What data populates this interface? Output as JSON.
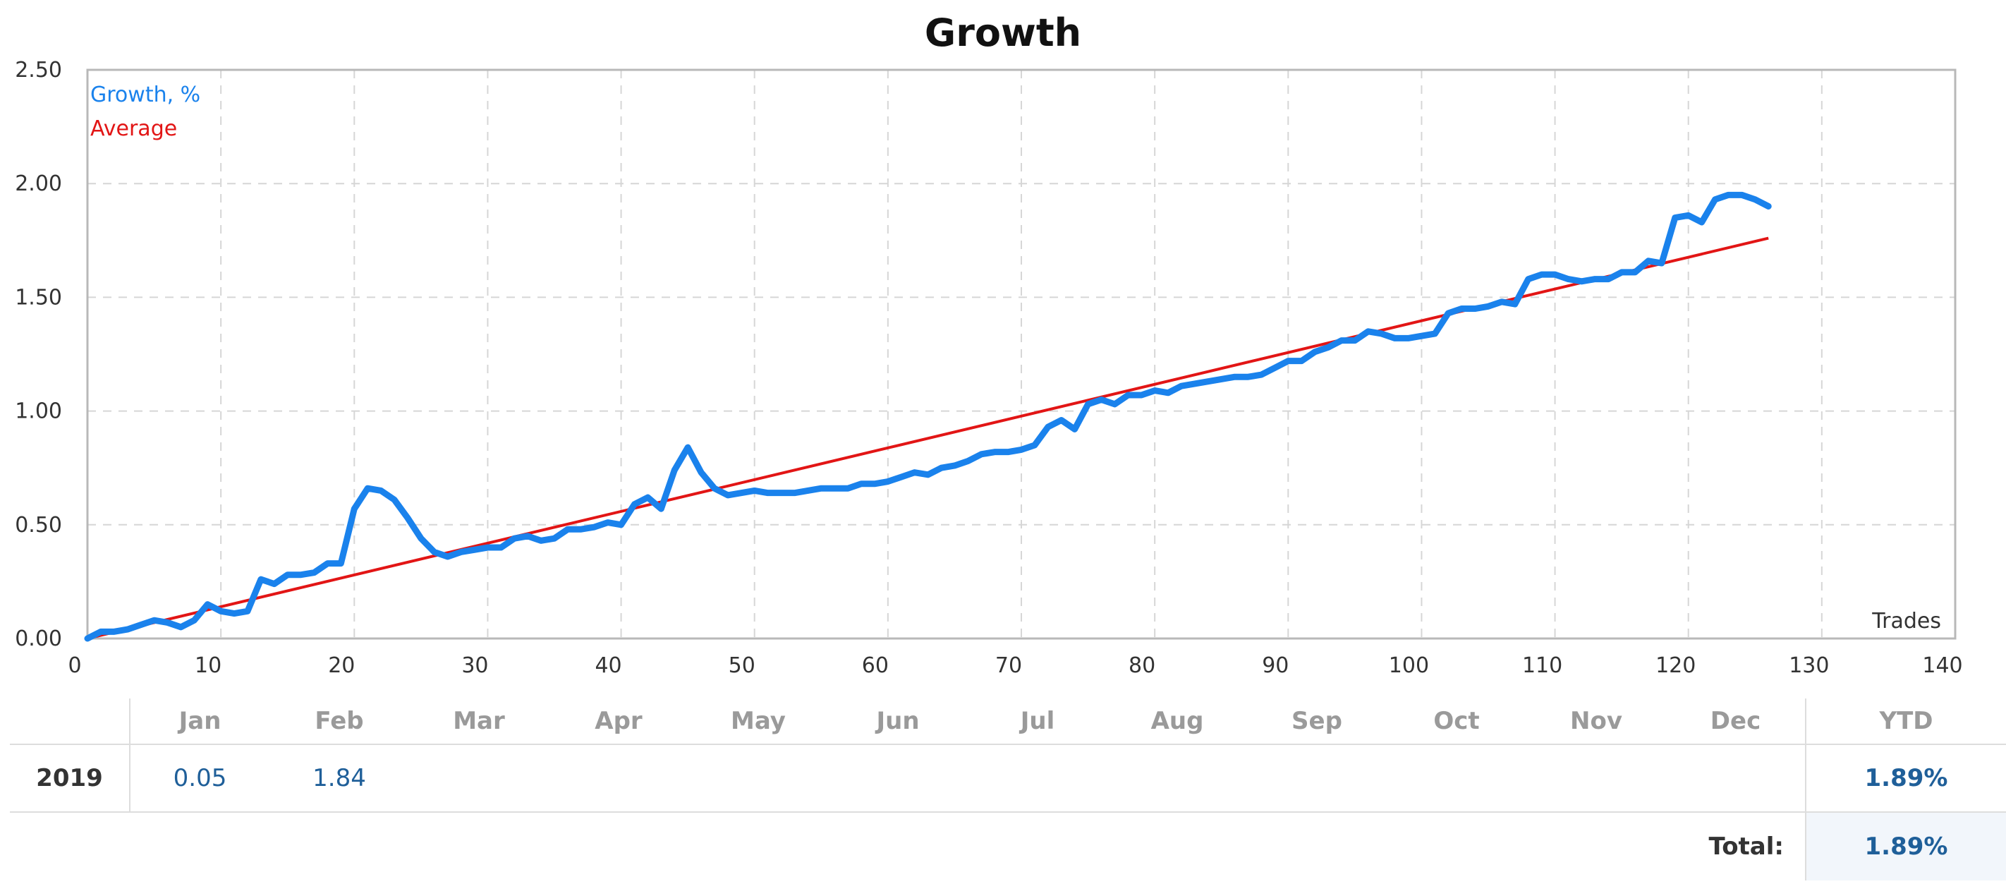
{
  "chart_data": {
    "type": "line",
    "title": "Growth",
    "xlabel": "Trades",
    "ylabel": "",
    "xlim": [
      0,
      140
    ],
    "ylim": [
      0,
      2.5
    ],
    "grid": true,
    "legend_position": "top-left",
    "x_ticks": [
      "0",
      "10",
      "20",
      "30",
      "40",
      "50",
      "60",
      "70",
      "80",
      "90",
      "100",
      "110",
      "120",
      "130",
      "140"
    ],
    "y_ticks": [
      "0.00",
      "0.50",
      "1.00",
      "1.50",
      "2.00",
      "2.50"
    ],
    "series": [
      {
        "name": "Growth, %",
        "color": "#1a82ec",
        "x": [
          0,
          1,
          2,
          3,
          4,
          5,
          6,
          7,
          8,
          9,
          10,
          11,
          12,
          13,
          14,
          15,
          16,
          17,
          18,
          19,
          20,
          21,
          22,
          23,
          24,
          25,
          26,
          27,
          28,
          29,
          30,
          31,
          32,
          33,
          34,
          35,
          36,
          37,
          38,
          39,
          40,
          41,
          42,
          43,
          44,
          45,
          46,
          47,
          48,
          49,
          50,
          51,
          52,
          53,
          54,
          55,
          56,
          57,
          58,
          59,
          60,
          61,
          62,
          63,
          64,
          65,
          66,
          67,
          68,
          69,
          70,
          71,
          72,
          73,
          74,
          75,
          76,
          77,
          78,
          79,
          80,
          81,
          82,
          83,
          84,
          85,
          86,
          87,
          88,
          89,
          90,
          91,
          92,
          93,
          94,
          95,
          96,
          97,
          98,
          99,
          100,
          101,
          102,
          103,
          104,
          105,
          106,
          107,
          108,
          109,
          110,
          111,
          112,
          113,
          114,
          115,
          116,
          117,
          118,
          119,
          120,
          121,
          122,
          123,
          124,
          125,
          126
        ],
        "y": [
          0,
          0.03,
          0.03,
          0.04,
          0.06,
          0.08,
          0.07,
          0.05,
          0.08,
          0.15,
          0.12,
          0.11,
          0.12,
          0.26,
          0.24,
          0.28,
          0.28,
          0.29,
          0.33,
          0.33,
          0.57,
          0.66,
          0.65,
          0.61,
          0.53,
          0.44,
          0.38,
          0.36,
          0.38,
          0.39,
          0.4,
          0.4,
          0.44,
          0.45,
          0.43,
          0.44,
          0.48,
          0.48,
          0.49,
          0.51,
          0.5,
          0.59,
          0.62,
          0.57,
          0.74,
          0.84,
          0.73,
          0.66,
          0.63,
          0.64,
          0.65,
          0.64,
          0.64,
          0.64,
          0.65,
          0.66,
          0.66,
          0.66,
          0.68,
          0.68,
          0.69,
          0.71,
          0.73,
          0.72,
          0.75,
          0.76,
          0.78,
          0.81,
          0.82,
          0.82,
          0.83,
          0.85,
          0.93,
          0.96,
          0.92,
          1.03,
          1.05,
          1.03,
          1.07,
          1.07,
          1.09,
          1.08,
          1.11,
          1.12,
          1.13,
          1.14,
          1.15,
          1.15,
          1.16,
          1.19,
          1.22,
          1.22,
          1.26,
          1.28,
          1.31,
          1.31,
          1.35,
          1.34,
          1.32,
          1.32,
          1.33,
          1.34,
          1.43,
          1.45,
          1.45,
          1.46,
          1.48,
          1.47,
          1.58,
          1.6,
          1.6,
          1.58,
          1.57,
          1.58,
          1.58,
          1.61,
          1.61,
          1.66,
          1.65,
          1.85,
          1.86,
          1.83,
          1.93,
          1.95,
          1.95,
          1.93,
          1.9
        ]
      },
      {
        "name": "Average",
        "color": "#e21515",
        "x": [
          0,
          126
        ],
        "y": [
          0,
          1.76
        ]
      }
    ]
  },
  "table": {
    "months": [
      "Jan",
      "Feb",
      "Mar",
      "Apr",
      "May",
      "Jun",
      "Jul",
      "Aug",
      "Sep",
      "Oct",
      "Nov",
      "Dec"
    ],
    "ytd_header": "YTD",
    "rows": [
      {
        "year": "2019",
        "values": [
          "0.05",
          "1.84",
          "",
          "",
          "",
          "",
          "",
          "",
          "",
          "",
          "",
          ""
        ],
        "ytd": "1.89%"
      }
    ],
    "total_label": "Total:",
    "total_value": "1.89%"
  }
}
